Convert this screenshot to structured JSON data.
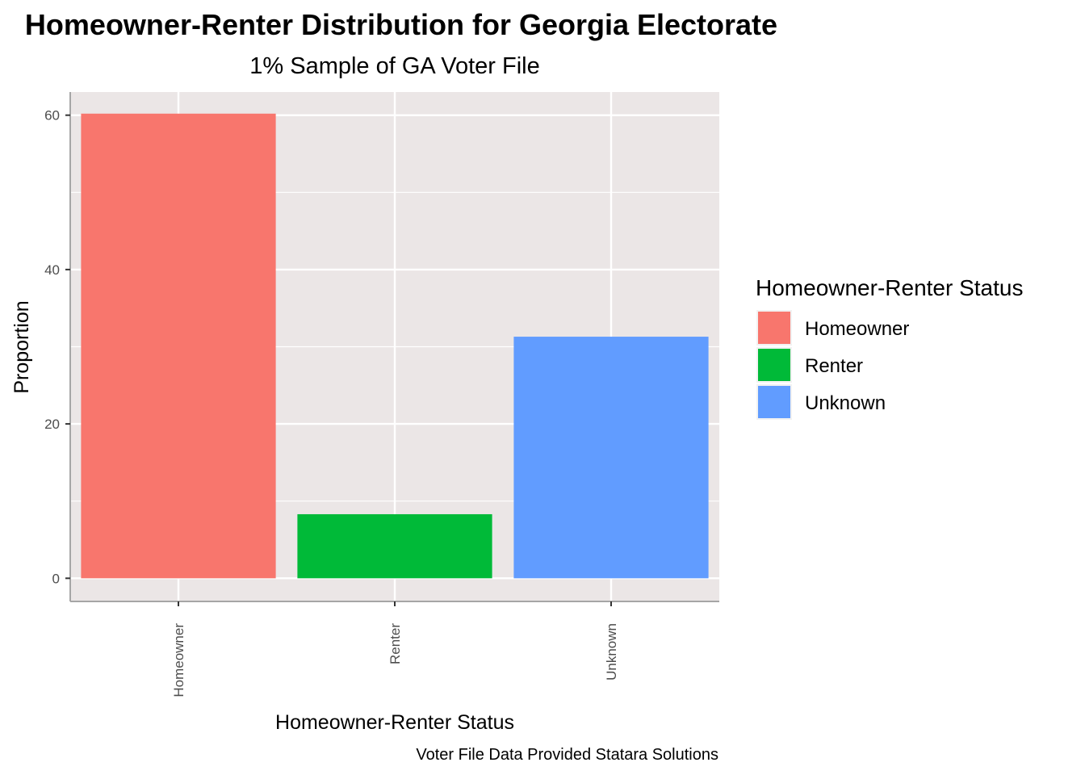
{
  "chart_data": {
    "type": "bar",
    "title": "Homeowner-Renter Distribution for Georgia Electorate",
    "subtitle": "1% Sample of GA Voter File",
    "xlabel": "Homeowner-Renter Status",
    "ylabel": "Proportion",
    "caption": "Voter File Data Provided Statara Solutions",
    "categories": [
      "Homeowner",
      "Renter",
      "Unknown"
    ],
    "values": [
      60.2,
      8.3,
      31.3
    ],
    "colors": [
      "#F8766D",
      "#00BA38",
      "#619CFF"
    ],
    "ylim": [
      -3,
      63
    ],
    "yticks": [
      0,
      20,
      40,
      60
    ],
    "grid": true,
    "panel_background": "#EBE6E6",
    "legend": {
      "title": "Homeowner-Renter Status",
      "position": "right",
      "entries": [
        "Homeowner",
        "Renter",
        "Unknown"
      ]
    }
  }
}
